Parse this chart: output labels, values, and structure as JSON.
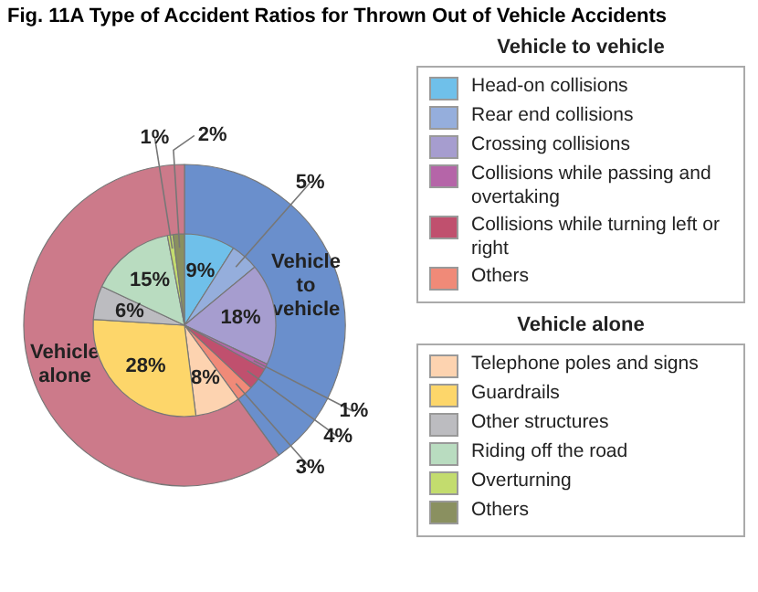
{
  "chart_data": [
    {
      "type": "donut",
      "title": "Fig. 11A  Type of Accident Ratios for Thrown Out of Vehicle Accidents",
      "categories": [
        "Vehicle to vehicle",
        "Vehicle alone"
      ],
      "values": [
        40,
        60
      ],
      "colors": [
        "#6a8fcc",
        "#cc7a8a"
      ]
    },
    {
      "type": "pie",
      "legend": "right",
      "categories": [
        "Head-on collisions",
        "Rear end collisions",
        "Crossing collisions",
        "Collisions while passing and overtaking",
        "Collisions while turning left or right",
        "Others",
        "Telephone poles and signs",
        "Guardrails",
        "Other structures",
        "Riding off the road",
        "Overturning",
        "Others"
      ],
      "values": [
        9,
        5,
        18,
        1,
        4,
        3,
        8,
        28,
        6,
        15,
        1,
        2
      ],
      "colors": [
        "#6fc0ea",
        "#95aedc",
        "#a69dcf",
        "#b565a8",
        "#c0506e",
        "#f08a78",
        "#fdd3b0",
        "#fdd66a",
        "#bcbcc0",
        "#b9dcc0",
        "#c3dc6e",
        "#8a9060"
      ],
      "value_labels": [
        "9%",
        "5%",
        "18%",
        "1%",
        "4%",
        "3%",
        "8%",
        "28%",
        "6%",
        "15%",
        "1%",
        "2%"
      ]
    }
  ]
}
